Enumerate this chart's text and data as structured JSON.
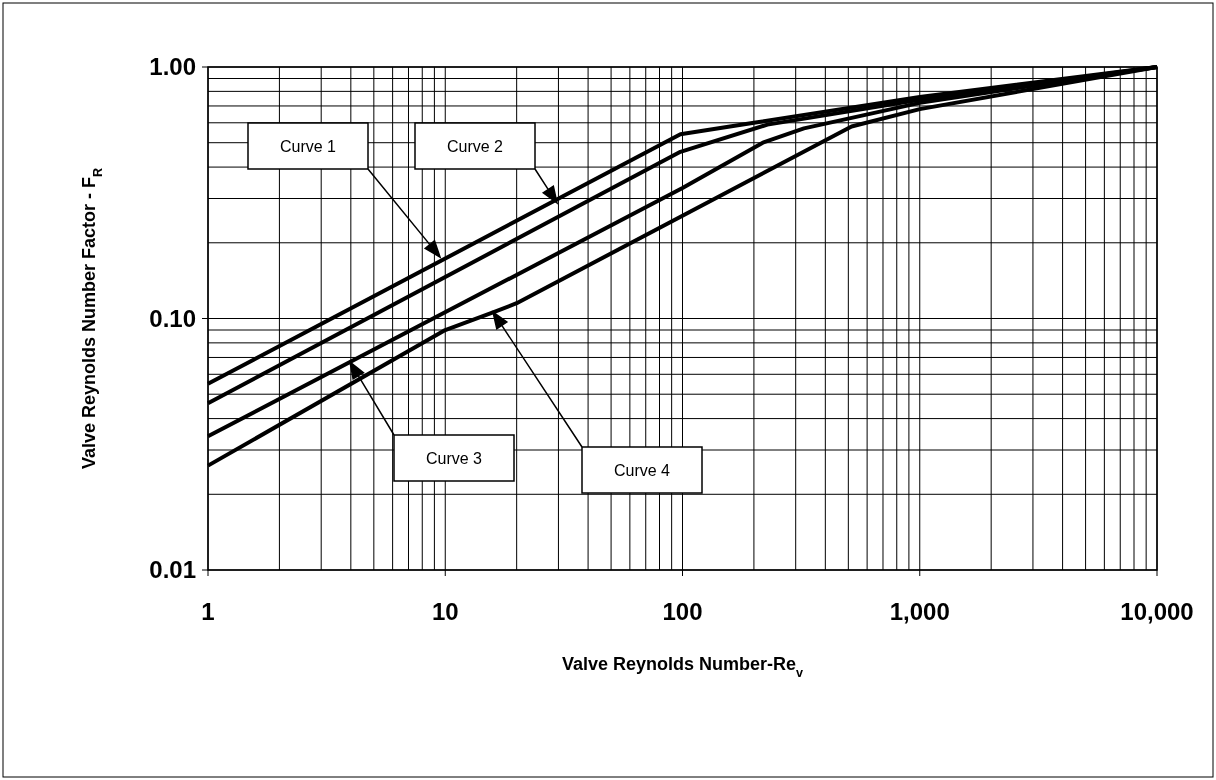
{
  "chart_data": {
    "type": "line",
    "xlabel": "Valve Reynolds Number-Re$_{v}$",
    "ylabel": "Valve Reynolds Number Factor - F$_{R}$",
    "log": "xy",
    "grid": true,
    "marker": "none",
    "line_style": "solid",
    "xlim": [
      1,
      10000
    ],
    "xticks": [
      1,
      10,
      100,
      {
        "value": 1000,
        "label": "1,000"
      },
      {
        "value": 10000,
        "label": "10,000"
      }
    ],
    "ylim": [
      0.01,
      1
    ],
    "yticks": [
      {
        "value": 0.01,
        "label": "0.01"
      },
      {
        "value": 0.1,
        "label": "0.10"
      },
      {
        "value": 1,
        "label": "1.00"
      }
    ],
    "series": [
      {
        "color": "#000000",
        "x": [
          1,
          98,
          200,
          1000,
          10000
        ],
        "values": [
          0.055,
          0.54,
          0.6,
          0.76,
          1
        ]
      },
      {
        "color": "#000000",
        "x": [
          1,
          98,
          228,
          1000,
          10000
        ],
        "values": [
          0.046,
          0.46,
          0.59,
          0.74,
          1
        ]
      },
      {
        "color": "#000000",
        "x": [
          1,
          100,
          218,
          325,
          1000,
          10000
        ],
        "values": [
          0.034,
          0.33,
          0.5,
          0.57,
          0.72,
          1
        ]
      },
      {
        "color": "#000000",
        "x": [
          1,
          10,
          16,
          20,
          516,
          1000,
          10000
        ],
        "values": [
          0.026,
          0.09,
          0.106,
          0.115,
          0.58,
          0.68,
          1
        ]
      }
    ],
    "annotations": [
      "Curve 1",
      "Curve 2",
      "Curve 3",
      "Curve 4"
    ]
  }
}
